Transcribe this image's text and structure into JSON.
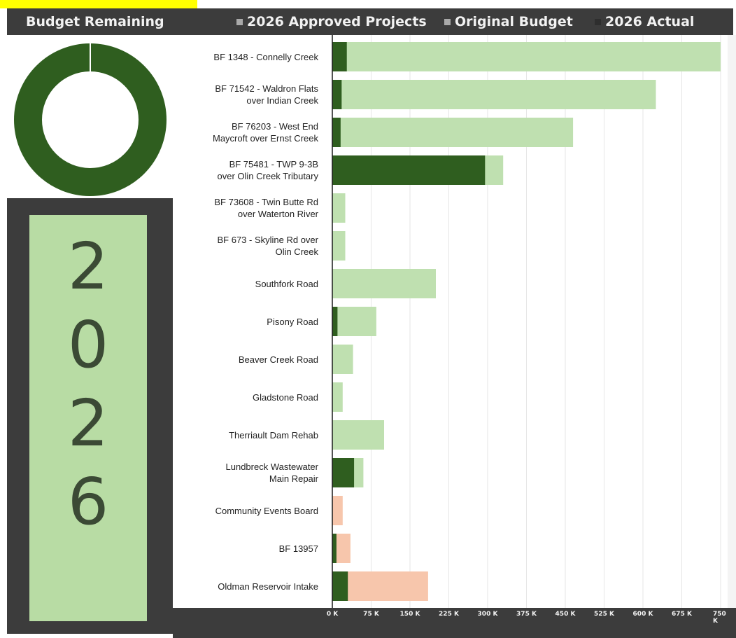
{
  "header": {
    "budget_remaining": "Budget Remaining",
    "legend": [
      {
        "label": "2026 Approved Projects",
        "color": "#a9a9a9"
      },
      {
        "label": "Original Budget",
        "color": "#a9a9a9"
      },
      {
        "label": "2026 Actual",
        "color": "#2e2e2e"
      }
    ]
  },
  "year": [
    "2",
    "0",
    "2",
    "6"
  ],
  "colors": {
    "actual": "#2f5e1f",
    "budget": "#bfe0b0",
    "over_budget": "#f7c6ac",
    "donut": "#2f5e1f"
  },
  "chart_data": {
    "type": "bar",
    "orientation": "horizontal",
    "categories": [
      "BF 1348 - Connelly Creek",
      "BF 71542 - Waldron Flats over Indian Creek",
      "BF 76203 - West End Maycroft over Ernst Creek",
      "BF 75481 - TWP 9-3B over Olin Creek Tributary",
      "BF 73608 - Twin Butte Rd over Waterton River",
      "BF 673 - Skyline Rd over Olin Creek",
      "Southfork Road",
      "Pisony Road",
      "Beaver Creek Road",
      "Gladstone Road",
      "Therriault Dam Rehab",
      "Lundbreck Wastewater Main Repair",
      "Community Events Board",
      "BF 13957",
      "Oldman Reservoir Intake"
    ],
    "category_lines": [
      [
        "BF 1348 - Connelly Creek"
      ],
      [
        "BF 71542 - Waldron Flats",
        "over Indian Creek"
      ],
      [
        "BF 76203 - West End",
        "Maycroft over Ernst Creek"
      ],
      [
        "BF 75481 - TWP  9-3B",
        "over Olin Creek Tributary"
      ],
      [
        "BF 73608 - Twin Butte Rd",
        "over Waterton River"
      ],
      [
        "BF 673 - Skyline Rd over",
        "Olin Creek"
      ],
      [
        "Southfork Road"
      ],
      [
        "Pisony Road"
      ],
      [
        "Beaver Creek Road"
      ],
      [
        "Gladstone Road"
      ],
      [
        "Therriault Dam Rehab"
      ],
      [
        "Lundbreck Wastewater",
        "Main Repair"
      ],
      [
        "Community Events Board"
      ],
      [
        "BF 13957"
      ],
      [
        "Oldman Reservoir Intake"
      ]
    ],
    "series": [
      {
        "name": "Original Budget",
        "values": [
          750,
          625,
          465,
          330,
          25,
          25,
          200,
          85,
          40,
          20,
          100,
          60,
          20,
          35,
          185
        ]
      },
      {
        "name": "2026 Actual",
        "values": [
          28,
          18,
          16,
          295,
          0,
          0,
          0,
          10,
          0,
          0,
          0,
          42,
          0,
          8,
          30
        ]
      }
    ],
    "over_budget": [
      false,
      false,
      false,
      false,
      false,
      false,
      false,
      false,
      false,
      false,
      false,
      false,
      true,
      true,
      true
    ],
    "xticks": [
      "0 K",
      "75 K",
      "150 K",
      "225 K",
      "300 K",
      "375 K",
      "450 K",
      "525 K",
      "600 K",
      "675 K",
      "750 K"
    ],
    "xlim": [
      0,
      765
    ],
    "grid": true,
    "donut": {
      "remaining_fraction": 0.99
    }
  }
}
